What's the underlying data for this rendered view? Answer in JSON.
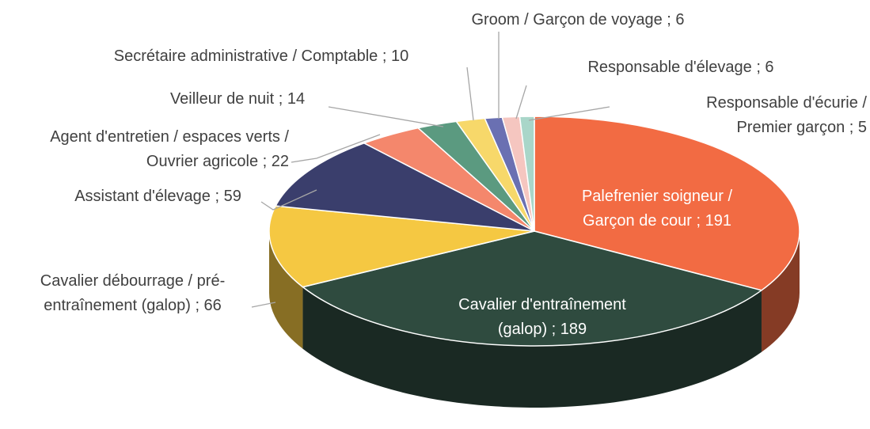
{
  "chart_data": {
    "type": "pie3d",
    "categories": [
      "Palefrenier soigneur / Garçon de cour",
      "Cavalier d'entraînement (galop)",
      "Cavalier débourrage / pré-entraînement (galop)",
      "Assistant d'élevage",
      "Agent d'entretien / espaces verts / Ouvrier agricole",
      "Veilleur de nuit",
      "Secrétaire administrative / Comptable",
      "Groom / Garçon de voyage",
      "Responsable d'élevage",
      "Responsable d'écurie / Premier garçon"
    ],
    "values": [
      191,
      189,
      66,
      59,
      22,
      14,
      10,
      6,
      6,
      5
    ],
    "value_labels": [
      "; 191",
      " ; 189",
      "; 66",
      "; 59",
      "; 22",
      "; 14",
      "; 10",
      "; 6",
      "; 6",
      "; 5"
    ],
    "colors": [
      "#f26b43",
      "#2f4b3f",
      "#f5c842",
      "#3a3e6c",
      "#f4876c",
      "#5b9a80",
      "#f7d86a",
      "#6a70b2",
      "#f5c6c0",
      "#a9d6c9"
    ]
  }
}
